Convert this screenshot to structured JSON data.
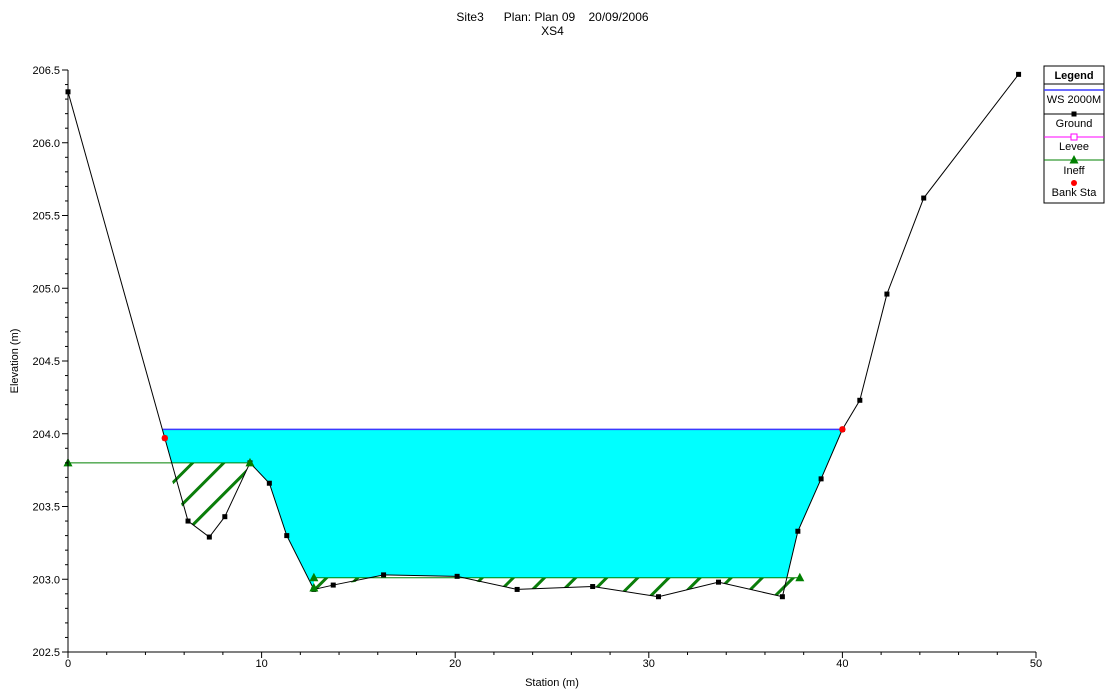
{
  "chart_data": {
    "type": "line",
    "title": "Site3      Plan: Plan 09    20/09/2006",
    "subtitle": "XS4",
    "xlabel": "Station (m)",
    "ylabel": "Elevation (m)",
    "xlim": [
      0,
      50
    ],
    "ylim": [
      202.5,
      206.5
    ],
    "x_ticks": [
      "0",
      "10",
      "20",
      "30",
      "40",
      "50"
    ],
    "y_ticks": [
      "202.5",
      "203.0",
      "203.5",
      "204.0",
      "204.5",
      "205.0",
      "205.5",
      "206.0",
      "206.5"
    ],
    "grid": false,
    "legend_position": "top-right",
    "legend": {
      "title": "Legend",
      "entries": [
        "WS 2000M",
        "Ground",
        "Levee",
        "Ineff",
        "Bank Sta"
      ]
    },
    "water_surface": {
      "name": "WS 2000M",
      "elevation": 204.03,
      "x_start": 4.9,
      "x_end": 40.0,
      "color": "#00FFFF",
      "line_color": "#3A3AFF"
    },
    "ground": {
      "name": "Ground",
      "x": [
        0,
        5,
        6.2,
        7.3,
        8.1,
        9.4,
        10.4,
        11.3,
        12.7,
        13.7,
        16.3,
        20.1,
        23.2,
        27.1,
        30.5,
        33.6,
        36.9,
        37.7,
        38.9,
        40,
        40.9,
        42.3,
        44.2,
        49.1
      ],
      "y": [
        206.35,
        203.97,
        203.4,
        203.29,
        203.43,
        203.8,
        203.66,
        203.3,
        202.93,
        202.96,
        203.03,
        203.02,
        202.93,
        202.95,
        202.88,
        202.98,
        202.88,
        203.33,
        203.69,
        204.03,
        204.23,
        204.96,
        205.62,
        206.47
      ],
      "color": "#000000"
    },
    "levee": {
      "name": "Levee",
      "points": [],
      "color": "#FF00FF"
    },
    "ineffective": {
      "name": "Ineff",
      "color": "#008000",
      "segments": [
        {
          "x": [
            0,
            9.4
          ],
          "y": [
            203.8,
            203.8
          ]
        },
        {
          "x": [
            12.7,
            37.8
          ],
          "y": [
            203.01,
            203.01
          ]
        }
      ],
      "markers": [
        {
          "x": 0,
          "y": 203.8
        },
        {
          "x": 9.4,
          "y": 203.8
        },
        {
          "x": 12.7,
          "y": 203.01
        },
        {
          "x": 12.7,
          "y": 202.94
        },
        {
          "x": 37.8,
          "y": 203.01
        }
      ]
    },
    "bank_stations": {
      "name": "Bank Sta",
      "color": "#FF0000",
      "points": [
        {
          "x": 5.0,
          "y": 203.97
        },
        {
          "x": 40.0,
          "y": 204.03
        }
      ]
    }
  }
}
